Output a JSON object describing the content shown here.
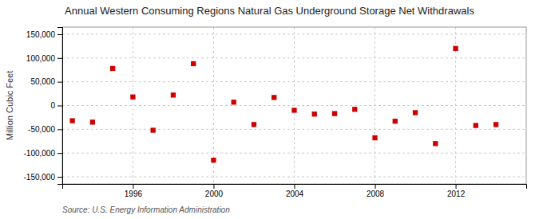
{
  "chart_data": {
    "type": "scatter",
    "title": "Annual Western Consuming Regions Natural Gas Underground Storage Net Withdrawals",
    "ylabel": "Million Cubic Feet",
    "source": "Source: U.S. Energy Information Administration",
    "x": [
      1993,
      1994,
      1995,
      1996,
      1997,
      1998,
      1999,
      2000,
      2001,
      2002,
      2003,
      2004,
      2005,
      2006,
      2007,
      2008,
      2009,
      2010,
      2011,
      2012,
      2013,
      2014
    ],
    "values": [
      -32000,
      -35000,
      78000,
      18000,
      -52000,
      22000,
      88000,
      -115000,
      7000,
      -40000,
      17000,
      -10000,
      -18000,
      -17000,
      -8000,
      -68000,
      -33000,
      -15000,
      -80000,
      120000,
      -42000,
      -40000
    ],
    "color": "#cc0000",
    "marker": "square",
    "xlim": [
      1992.5,
      2015.5
    ],
    "ylim": [
      -165000,
      165000
    ],
    "xticks": [
      1996,
      2000,
      2004,
      2008,
      2012
    ],
    "yticks": [
      {
        "value": -150000,
        "label": "-150,000"
      },
      {
        "value": -100000,
        "label": "-100,000"
      },
      {
        "value": -50000,
        "label": "-50,000"
      },
      0,
      {
        "value": 50000,
        "label": "50,000"
      },
      {
        "value": 100000,
        "label": "100,000"
      },
      {
        "value": 150000,
        "label": "150,000"
      }
    ],
    "grid": true
  }
}
